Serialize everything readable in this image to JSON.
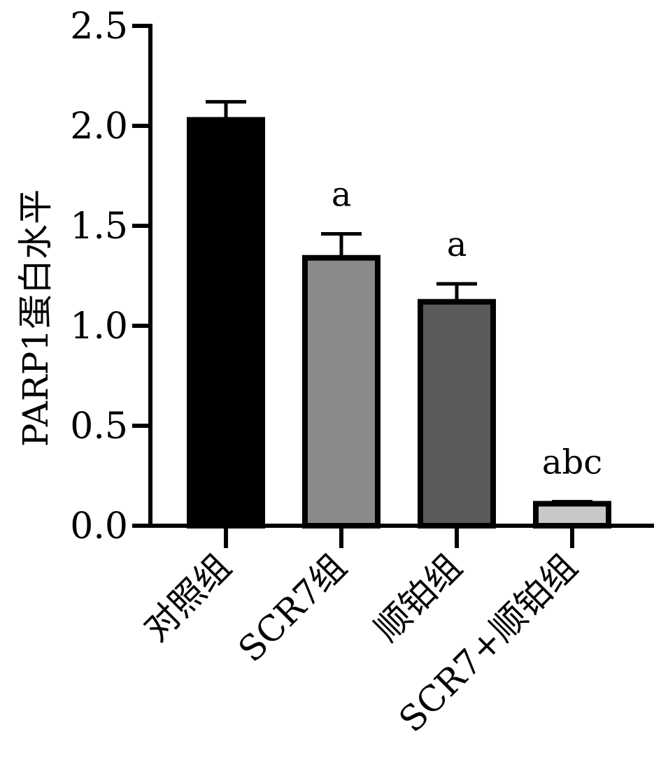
{
  "chart_data": {
    "type": "bar",
    "ylabel": "PARP1蛋白水平",
    "ylim": [
      0,
      2.5
    ],
    "yticks": [
      "0.0",
      "0.5",
      "1.0",
      "1.5",
      "2.0",
      "2.5"
    ],
    "categories": [
      "对照组",
      "SCR7组",
      "顺铂组",
      "SCR7+顺铂组"
    ],
    "values": [
      2.03,
      1.34,
      1.12,
      0.11
    ],
    "errors": [
      0.09,
      0.12,
      0.09,
      0.01
    ],
    "significance": [
      "",
      "a",
      "a",
      "abc"
    ],
    "colors": [
      "#000000",
      "#8a8a8a",
      "#5a5a5a",
      "#c8c8c8"
    ]
  }
}
